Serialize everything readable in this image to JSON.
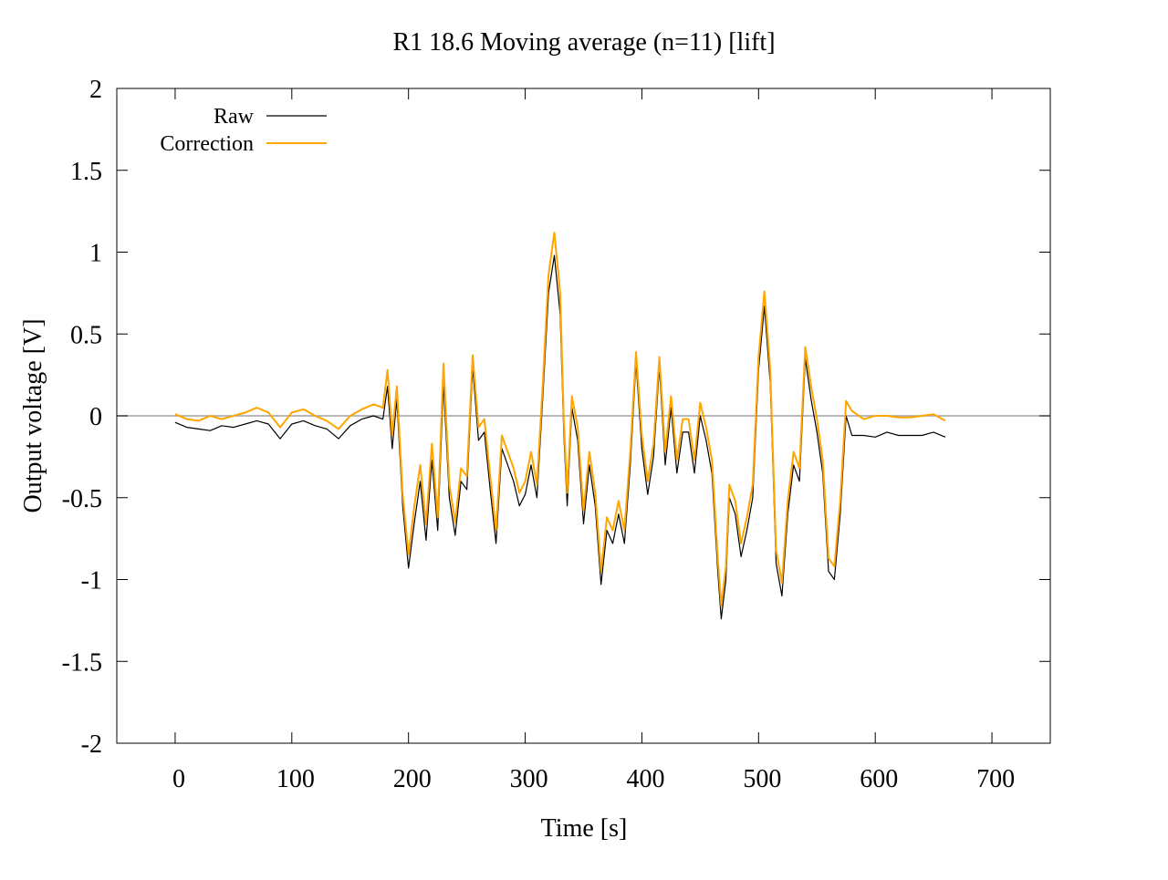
{
  "chart_data": {
    "type": "line",
    "title": "R1 18.6  Moving average (n=11) [lift]",
    "xlabel": "Time [s]",
    "ylabel": "Output voltage [V]",
    "xlim": [
      -50,
      750
    ],
    "ylim": [
      -2,
      2
    ],
    "x_ticks": [
      0,
      100,
      200,
      300,
      400,
      500,
      600,
      700
    ],
    "x_tick_labels": [
      "0",
      "100",
      "200",
      "300",
      "400",
      "500",
      "600",
      "700"
    ],
    "y_ticks": [
      2,
      1.5,
      1,
      0.5,
      0,
      -0.5,
      -1,
      -1.5,
      -2
    ],
    "y_tick_labels": [
      "2",
      "1.5",
      "1",
      "0.5",
      "0",
      "-0.5",
      "-1",
      "-1.5",
      "-2"
    ],
    "grid": false,
    "legend_position": "top-left",
    "zero_line": {
      "y": 0,
      "color": "#a0a0a0"
    },
    "series": [
      {
        "name": "Raw",
        "color": "#000000",
        "x": [
          0,
          10,
          20,
          30,
          40,
          50,
          60,
          70,
          80,
          90,
          100,
          110,
          120,
          130,
          140,
          150,
          160,
          170,
          178,
          182,
          186,
          190,
          195,
          200,
          205,
          210,
          215,
          220,
          225,
          230,
          235,
          240,
          245,
          250,
          255,
          260,
          265,
          270,
          275,
          280,
          285,
          290,
          295,
          300,
          305,
          310,
          315,
          320,
          325,
          330,
          333,
          336,
          340,
          345,
          350,
          355,
          360,
          365,
          370,
          375,
          380,
          385,
          390,
          395,
          400,
          405,
          410,
          415,
          420,
          425,
          430,
          435,
          440,
          445,
          450,
          455,
          460,
          465,
          468,
          472,
          475,
          480,
          485,
          490,
          495,
          500,
          505,
          510,
          515,
          520,
          525,
          530,
          535,
          540,
          545,
          550,
          555,
          560,
          565,
          570,
          575,
          580,
          590,
          600,
          610,
          620,
          630,
          640,
          650,
          660
        ],
        "y": [
          -0.04,
          -0.07,
          -0.08,
          -0.09,
          -0.06,
          -0.07,
          -0.05,
          -0.03,
          -0.05,
          -0.14,
          -0.05,
          -0.03,
          -0.06,
          -0.08,
          -0.14,
          -0.06,
          -0.02,
          0.0,
          -0.02,
          0.18,
          -0.2,
          0.1,
          -0.55,
          -0.93,
          -0.65,
          -0.4,
          -0.76,
          -0.27,
          -0.7,
          0.2,
          -0.5,
          -0.73,
          -0.4,
          -0.45,
          0.3,
          -0.15,
          -0.1,
          -0.45,
          -0.78,
          -0.2,
          -0.3,
          -0.4,
          -0.55,
          -0.48,
          -0.3,
          -0.5,
          0.1,
          0.75,
          0.98,
          0.62,
          -0.1,
          -0.55,
          0.05,
          -0.15,
          -0.66,
          -0.3,
          -0.55,
          -1.03,
          -0.7,
          -0.78,
          -0.6,
          -0.78,
          -0.3,
          0.33,
          -0.2,
          -0.48,
          -0.25,
          0.3,
          -0.3,
          0.05,
          -0.35,
          -0.1,
          -0.1,
          -0.35,
          0.0,
          -0.15,
          -0.35,
          -0.95,
          -1.24,
          -1.0,
          -0.5,
          -0.6,
          -0.86,
          -0.7,
          -0.5,
          0.28,
          0.67,
          0.2,
          -0.9,
          -1.1,
          -0.6,
          -0.3,
          -0.4,
          0.35,
          0.1,
          -0.1,
          -0.35,
          -0.95,
          -1.0,
          -0.6,
          0.0,
          -0.12,
          -0.12,
          -0.13,
          -0.1,
          -0.12,
          -0.12,
          -0.12,
          -0.1,
          -0.13
        ]
      },
      {
        "name": "Correction",
        "color": "#ffa500",
        "x": [
          0,
          10,
          20,
          30,
          40,
          50,
          60,
          70,
          80,
          90,
          100,
          110,
          120,
          130,
          140,
          150,
          160,
          170,
          178,
          182,
          186,
          190,
          195,
          200,
          205,
          210,
          215,
          220,
          225,
          230,
          235,
          240,
          245,
          250,
          255,
          260,
          265,
          270,
          275,
          280,
          285,
          290,
          295,
          300,
          305,
          310,
          315,
          320,
          325,
          330,
          333,
          336,
          340,
          345,
          350,
          355,
          360,
          365,
          370,
          375,
          380,
          385,
          390,
          395,
          400,
          405,
          410,
          415,
          420,
          425,
          430,
          435,
          440,
          445,
          450,
          455,
          460,
          465,
          468,
          472,
          475,
          480,
          485,
          490,
          495,
          500,
          505,
          510,
          515,
          520,
          525,
          530,
          535,
          540,
          545,
          550,
          555,
          560,
          565,
          570,
          575,
          580,
          590,
          600,
          610,
          620,
          630,
          640,
          650,
          660
        ],
        "y": [
          0.01,
          -0.02,
          -0.03,
          0.0,
          -0.02,
          0.0,
          0.02,
          0.05,
          0.02,
          -0.07,
          0.02,
          0.04,
          0.0,
          -0.03,
          -0.08,
          0.0,
          0.04,
          0.07,
          0.05,
          0.28,
          -0.12,
          0.18,
          -0.48,
          -0.85,
          -0.55,
          -0.3,
          -0.66,
          -0.17,
          -0.62,
          0.32,
          -0.42,
          -0.65,
          -0.32,
          -0.37,
          0.37,
          -0.07,
          -0.02,
          -0.37,
          -0.7,
          -0.12,
          -0.22,
          -0.32,
          -0.47,
          -0.4,
          -0.22,
          -0.42,
          0.18,
          0.86,
          1.12,
          0.75,
          -0.02,
          -0.47,
          0.12,
          -0.07,
          -0.58,
          -0.22,
          -0.47,
          -0.95,
          -0.62,
          -0.7,
          -0.52,
          -0.7,
          -0.22,
          0.39,
          -0.12,
          -0.4,
          -0.17,
          0.36,
          -0.22,
          0.12,
          -0.27,
          -0.02,
          -0.02,
          -0.27,
          0.08,
          -0.07,
          -0.27,
          -0.87,
          -1.16,
          -0.92,
          -0.42,
          -0.52,
          -0.78,
          -0.62,
          -0.42,
          0.36,
          0.76,
          0.28,
          -0.82,
          -1.02,
          -0.52,
          -0.22,
          -0.32,
          0.42,
          0.18,
          -0.02,
          -0.27,
          -0.87,
          -0.92,
          -0.52,
          0.09,
          0.03,
          -0.02,
          0.0,
          0.0,
          -0.01,
          -0.01,
          0.0,
          0.01,
          -0.03
        ]
      }
    ]
  }
}
